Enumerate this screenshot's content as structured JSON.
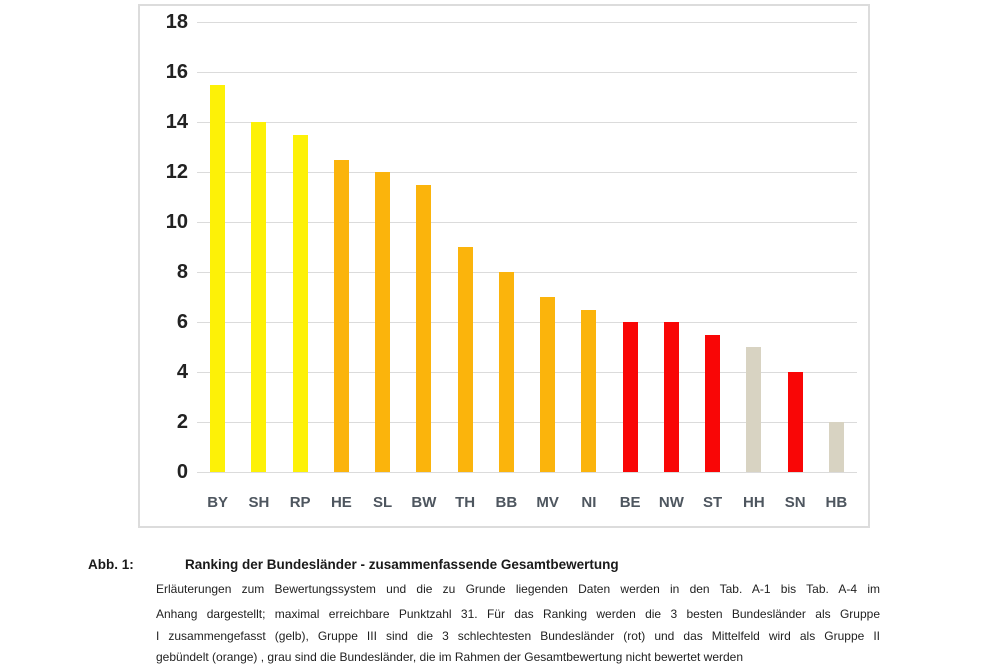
{
  "chart_data": {
    "type": "bar",
    "title": "Ranking der Bundesländer - zusammenfassende Gesamtbewertung",
    "categories": [
      "BY",
      "SH",
      "RP",
      "HE",
      "SL",
      "BW",
      "TH",
      "BB",
      "MV",
      "NI",
      "BE",
      "NW",
      "ST",
      "HH",
      "SN",
      "HB"
    ],
    "values": [
      15.5,
      14,
      13.5,
      12.5,
      12,
      11.5,
      9,
      8,
      7,
      6.5,
      6,
      6,
      5.5,
      5,
      4,
      2
    ],
    "bar_colors": [
      "yellow",
      "yellow",
      "yellow",
      "orange",
      "orange",
      "orange",
      "orange",
      "orange",
      "orange",
      "orange",
      "red",
      "red",
      "red",
      "grey",
      "red",
      "grey"
    ],
    "palette": {
      "yellow": "#fdf107",
      "orange": "#fbb40c",
      "red": "#f90606",
      "grey": "#d8d3c2"
    },
    "xlabel": "",
    "ylabel": "",
    "ylim": [
      0,
      18
    ],
    "yticks": [
      0,
      2,
      4,
      6,
      8,
      10,
      12,
      14,
      16,
      18
    ],
    "grid": true,
    "legend_position": "none",
    "gridline_color": "#dbdbdb",
    "axis_label_color": "#222222",
    "category_label_color": "#4e565f"
  },
  "caption": {
    "label": "Abb. 1:",
    "title": "Ranking der Bundesländer - zusammenfassende Gesamtbewertung",
    "lines": [
      {
        "text": "Erläuterungen zum Bewertungssystem und die zu Grunde liegenden Daten werden in den Tab. A-1 bis Tab. A-4 im",
        "justify": true
      },
      {
        "text": "Anhang dargestellt; maximal erreichbare Punktzahl 31. Für das Ranking werden die 3 besten Bundesländer als Gruppe",
        "justify": true
      },
      {
        "text": "I zusammengefasst (gelb), Gruppe III sind die 3 schlechtesten  Bundesländer (rot) und das Mittelfeld wird als Gruppe II",
        "justify": true
      },
      {
        "text": "gebündelt (orange) , grau sind die Bundesländer, die im Rahmen der Gesamtbewertung nicht bewertet werden",
        "justify": false
      }
    ]
  }
}
